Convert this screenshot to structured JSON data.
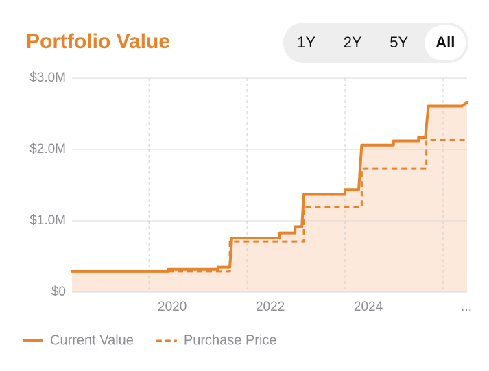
{
  "chart_data": {
    "type": "line",
    "title": "Portfolio Value",
    "range_options": [
      "1Y",
      "2Y",
      "5Y",
      "All"
    ],
    "selected_range": "All",
    "xlim": [
      2018.43,
      2026.49
    ],
    "xticks": [
      2020,
      2022,
      2024,
      {
        "value": 2026,
        "label": "..."
      }
    ],
    "ylim": [
      0,
      3
    ],
    "yticks": [
      {
        "value": 0,
        "label": "$0"
      },
      {
        "value": 1,
        "label": "$1.0M"
      },
      {
        "value": 2,
        "label": "$2.0M"
      },
      {
        "value": 3,
        "label": "$3.0M"
      }
    ],
    "grid": true,
    "fill_color": "#fde9dc",
    "series": [
      {
        "name": "Current Value",
        "color": "#e8832c",
        "style": "solid",
        "fill": true,
        "x": [
          2018.43,
          2020.39,
          2020.39,
          2021.41,
          2021.41,
          2021.65,
          2021.69,
          2022.67,
          2022.67,
          2022.98,
          2022.98,
          2023.12,
          2023.16,
          2024.0,
          2024.0,
          2024.28,
          2024.34,
          2024.99,
          2024.99,
          2025.5,
          2025.5,
          2025.64,
          2025.7,
          2026.38,
          2026.49
        ],
        "values": [
          0.29,
          0.29,
          0.32,
          0.32,
          0.35,
          0.35,
          0.76,
          0.76,
          0.83,
          0.83,
          0.92,
          0.92,
          1.37,
          1.37,
          1.44,
          1.44,
          2.06,
          2.06,
          2.12,
          2.12,
          2.17,
          2.17,
          2.61,
          2.61,
          2.66
        ]
      },
      {
        "name": "Purchase Price",
        "color": "#e8832c",
        "style": "dashed",
        "fill": false,
        "x": [
          2018.43,
          2021.65,
          2021.65,
          2023.16,
          2023.16,
          2024.34,
          2024.34,
          2025.66,
          2025.66,
          2026.49
        ],
        "values": [
          0.29,
          0.29,
          0.71,
          0.71,
          1.19,
          1.19,
          1.73,
          1.73,
          2.13,
          2.13
        ]
      }
    ]
  }
}
